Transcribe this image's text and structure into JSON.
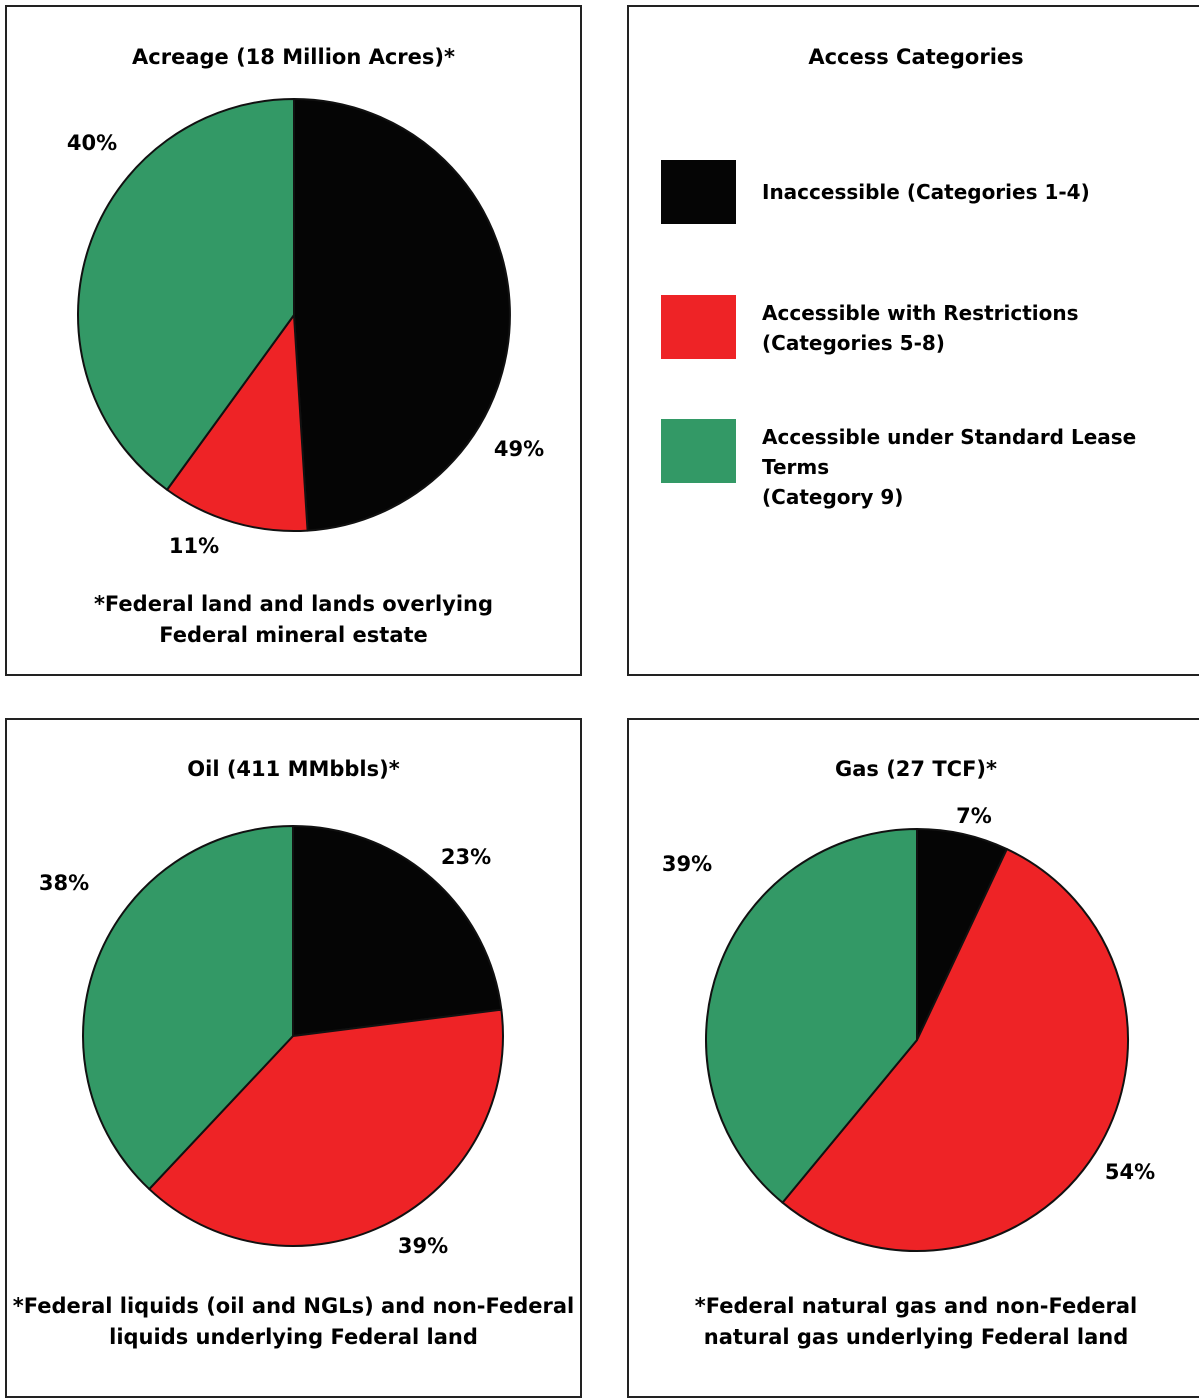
{
  "colors": {
    "inaccessible": "#050505",
    "restricted": "#ee2326",
    "standard": "#339966",
    "border": "#222222"
  },
  "legend": {
    "title": "Access Categories",
    "items": [
      {
        "key": "inaccessible",
        "label": "Inaccessible (Categories 1-4)",
        "color": "#050505"
      },
      {
        "key": "restricted",
        "label": "Accessible with Restrictions\n(Categories 5-8)",
        "color": "#ee2326"
      },
      {
        "key": "standard",
        "label": "Accessible under Standard Lease Terms\n(Category 9)",
        "color": "#339966"
      }
    ]
  },
  "chart_data": [
    {
      "type": "pie",
      "title": "Acreage (18 Million Acres)*",
      "note_lines": [
        "*Federal land and lands overlying",
        "Federal mineral estate"
      ],
      "categories": [
        "Inaccessible (Categories 1-4)",
        "Accessible with Restrictions (Categories 5-8)",
        "Accessible under Standard Lease Terms (Category 9)"
      ],
      "values": [
        49,
        11,
        40
      ],
      "labels": [
        "49%",
        "11%",
        "40%"
      ]
    },
    {
      "type": "pie",
      "title": "Oil (411 MMbbls)*",
      "note_lines": [
        "*Federal liquids (oil and NGLs) and non-Federal",
        "liquids underlying Federal land"
      ],
      "categories": [
        "Inaccessible (Categories 1-4)",
        "Accessible with Restrictions (Categories 5-8)",
        "Accessible under Standard Lease Terms (Category 9)"
      ],
      "values": [
        23,
        39,
        38
      ],
      "labels": [
        "23%",
        "39%",
        "38%"
      ]
    },
    {
      "type": "pie",
      "title": "Gas (27 TCF)*",
      "note_lines": [
        "*Federal natural gas and non-Federal",
        "natural gas underlying Federal land"
      ],
      "categories": [
        "Inaccessible (Categories 1-4)",
        "Accessible with Restrictions (Categories 5-8)",
        "Accessible under Standard Lease Terms (Category 9)"
      ],
      "values": [
        7,
        54,
        39
      ],
      "labels": [
        "7%",
        "54%",
        "39%"
      ]
    }
  ]
}
